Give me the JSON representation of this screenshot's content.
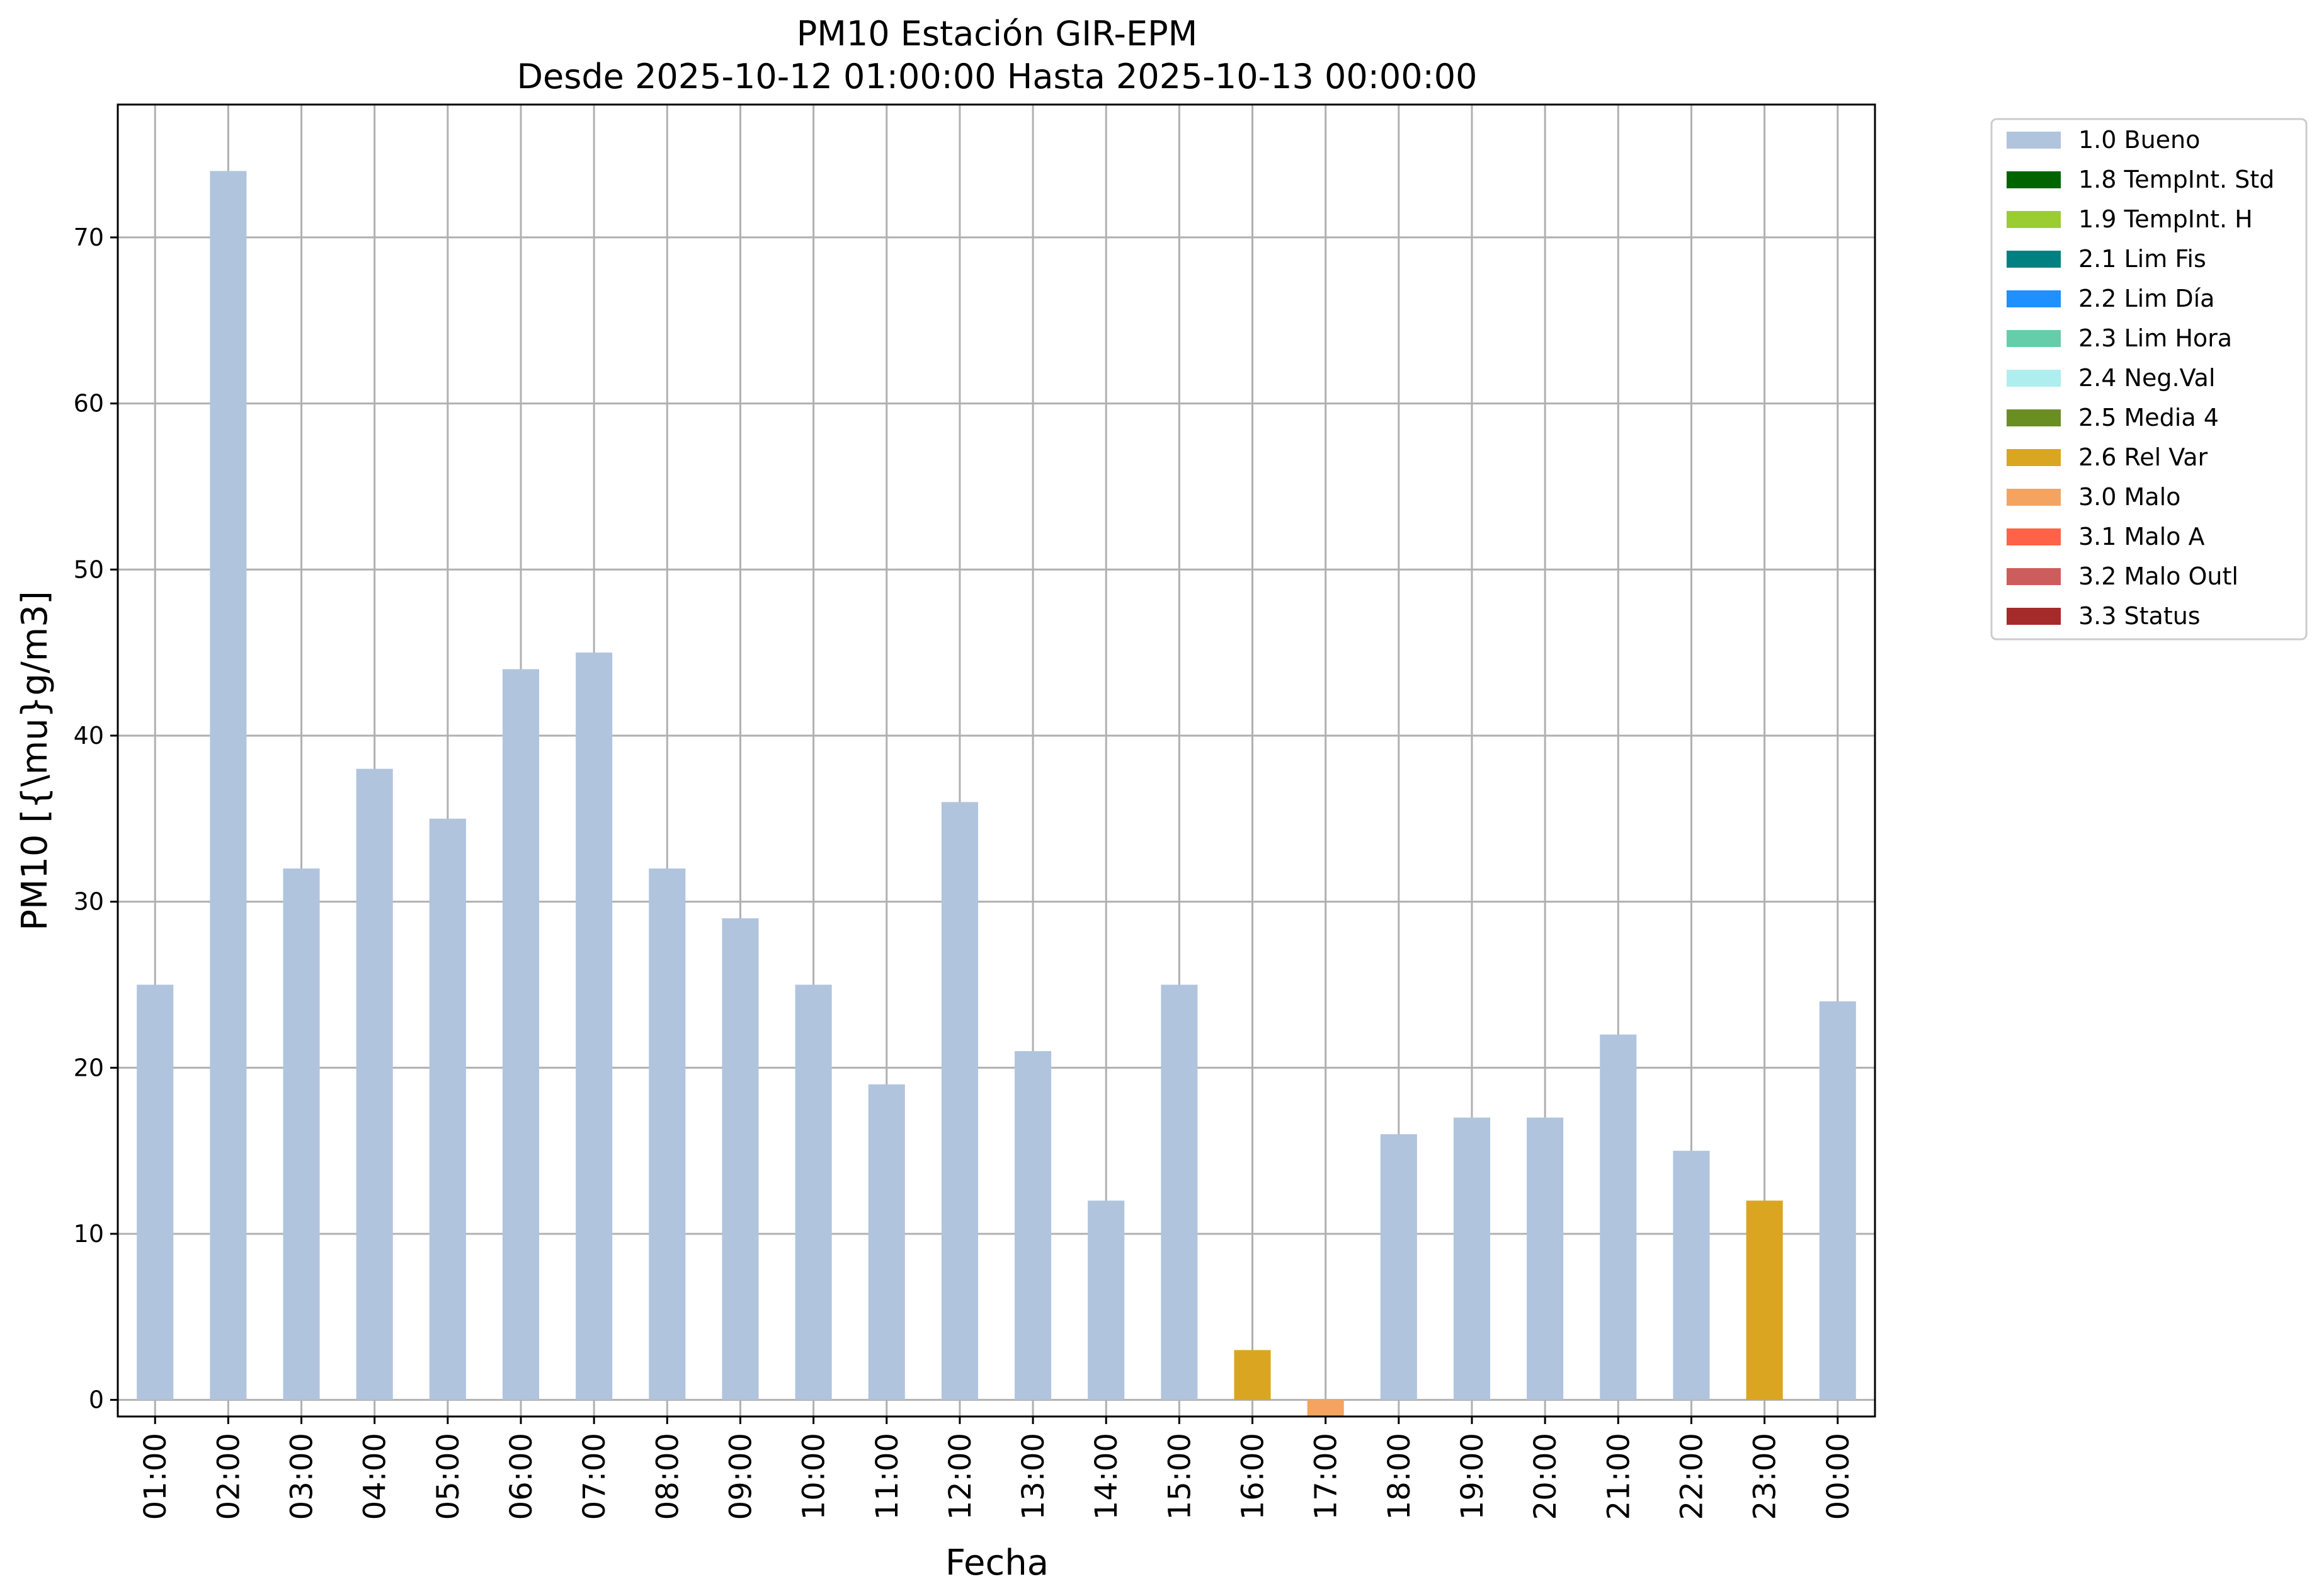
{
  "chart_data": {
    "type": "bar",
    "title": [
      "PM10 Estación GIR-EPM",
      "Desde 2025-10-12 01:00:00 Hasta 2025-10-13 00:00:00"
    ],
    "xlabel": "Fecha",
    "ylabel": "PM10 [{\\mu}g/m3]",
    "ylim": [
      -1,
      78
    ],
    "yticks": [
      0,
      10,
      20,
      30,
      40,
      50,
      60,
      70
    ],
    "grid": true,
    "legend_position": "outside-top-right",
    "categories": [
      "01:00",
      "02:00",
      "03:00",
      "04:00",
      "05:00",
      "06:00",
      "07:00",
      "08:00",
      "09:00",
      "10:00",
      "11:00",
      "12:00",
      "13:00",
      "14:00",
      "15:00",
      "16:00",
      "17:00",
      "18:00",
      "19:00",
      "20:00",
      "21:00",
      "22:00",
      "23:00",
      "00:00"
    ],
    "values": [
      25,
      74,
      32,
      38,
      35,
      44,
      45,
      32,
      29,
      25,
      19,
      36,
      21,
      12,
      25,
      3,
      -1,
      16,
      17,
      17,
      22,
      15,
      12,
      24
    ],
    "flags": [
      "1.0 Bueno",
      "1.0 Bueno",
      "1.0 Bueno",
      "1.0 Bueno",
      "1.0 Bueno",
      "1.0 Bueno",
      "1.0 Bueno",
      "1.0 Bueno",
      "1.0 Bueno",
      "1.0 Bueno",
      "1.0 Bueno",
      "1.0 Bueno",
      "1.0 Bueno",
      "1.0 Bueno",
      "1.0 Bueno",
      "2.6 Rel Var",
      "3.0 Malo",
      "1.0 Bueno",
      "1.0 Bueno",
      "1.0 Bueno",
      "1.0 Bueno",
      "1.0 Bueno",
      "2.6 Rel Var",
      "1.0 Bueno"
    ],
    "legend": [
      {
        "name": "1.0 Bueno",
        "color": "#b0c4de"
      },
      {
        "name": "1.8 TempInt. Std",
        "color": "#006400"
      },
      {
        "name": "1.9 TempInt. H",
        "color": "#9acd32"
      },
      {
        "name": "2.1 Lim Fis",
        "color": "#008080"
      },
      {
        "name": "2.2 Lim Día",
        "color": "#1e90ff"
      },
      {
        "name": "2.3 Lim Hora",
        "color": "#66cdaa"
      },
      {
        "name": "2.4 Neg.Val",
        "color": "#afeeee"
      },
      {
        "name": "2.5 Media 4",
        "color": "#6b8e23"
      },
      {
        "name": "2.6 Rel Var",
        "color": "#daa520"
      },
      {
        "name": "3.0 Malo",
        "color": "#f4a460"
      },
      {
        "name": "3.1 Malo A",
        "color": "#ff6347"
      },
      {
        "name": "3.2 Malo Outl",
        "color": "#cd5c5c"
      },
      {
        "name": "3.3 Status",
        "color": "#a52a2a"
      }
    ]
  }
}
